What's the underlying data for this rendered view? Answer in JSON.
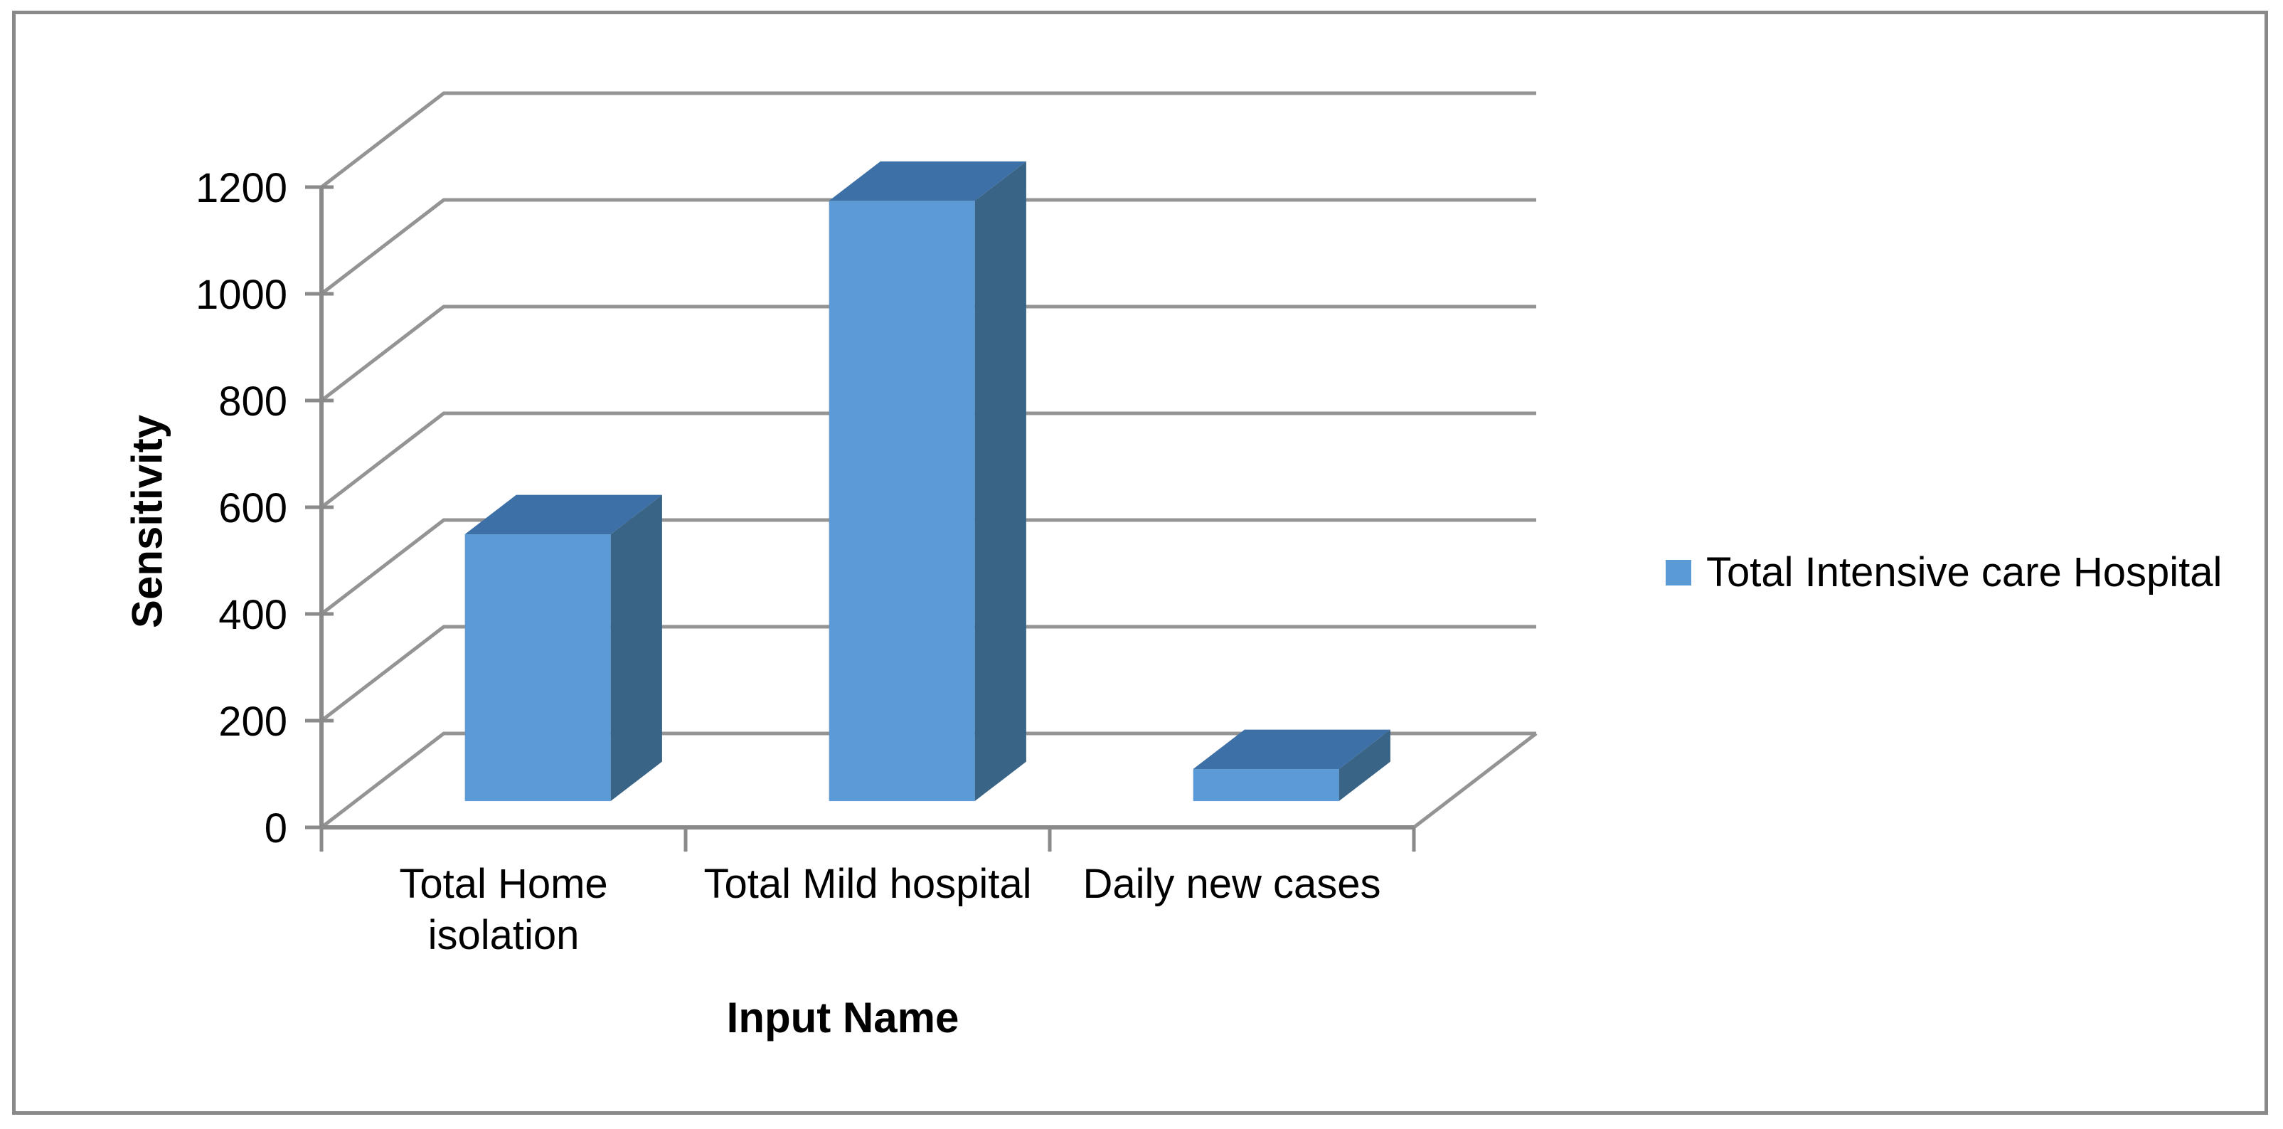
{
  "figure": {
    "background": "#FFFFFF",
    "border_color": "#898989"
  },
  "chart_data": {
    "type": "bar",
    "projection": "3d-column",
    "title": "",
    "xlabel": "Input Name",
    "ylabel": "Sensitivity",
    "categories": [
      "Total Home isolation",
      "Total Mild hospital",
      "Daily new cases"
    ],
    "category_display_lines": [
      [
        "Total Home",
        "isolation"
      ],
      [
        "Total Mild hospital"
      ],
      [
        "Daily new cases"
      ]
    ],
    "series": [
      {
        "name": "Total Intensive care Hospital",
        "values": [
          500,
          1125,
          60
        ],
        "color": "#5B9AD4"
      }
    ],
    "ylim": [
      0,
      1200
    ],
    "yticks": [
      0,
      200,
      400,
      600,
      800,
      1000,
      1200
    ],
    "grid": true,
    "legend_position": "right",
    "colors": {
      "bar_front": "#5B9AD4",
      "bar_top": "#3D70A6",
      "bar_side": "#3A6486",
      "gridline": "#949494",
      "axis": "#8A8A8A",
      "tick": "#8A8A8A",
      "text": "#000000",
      "legend_swatch": "#5B9BD5",
      "plot_background": "#FFFFFF"
    }
  }
}
